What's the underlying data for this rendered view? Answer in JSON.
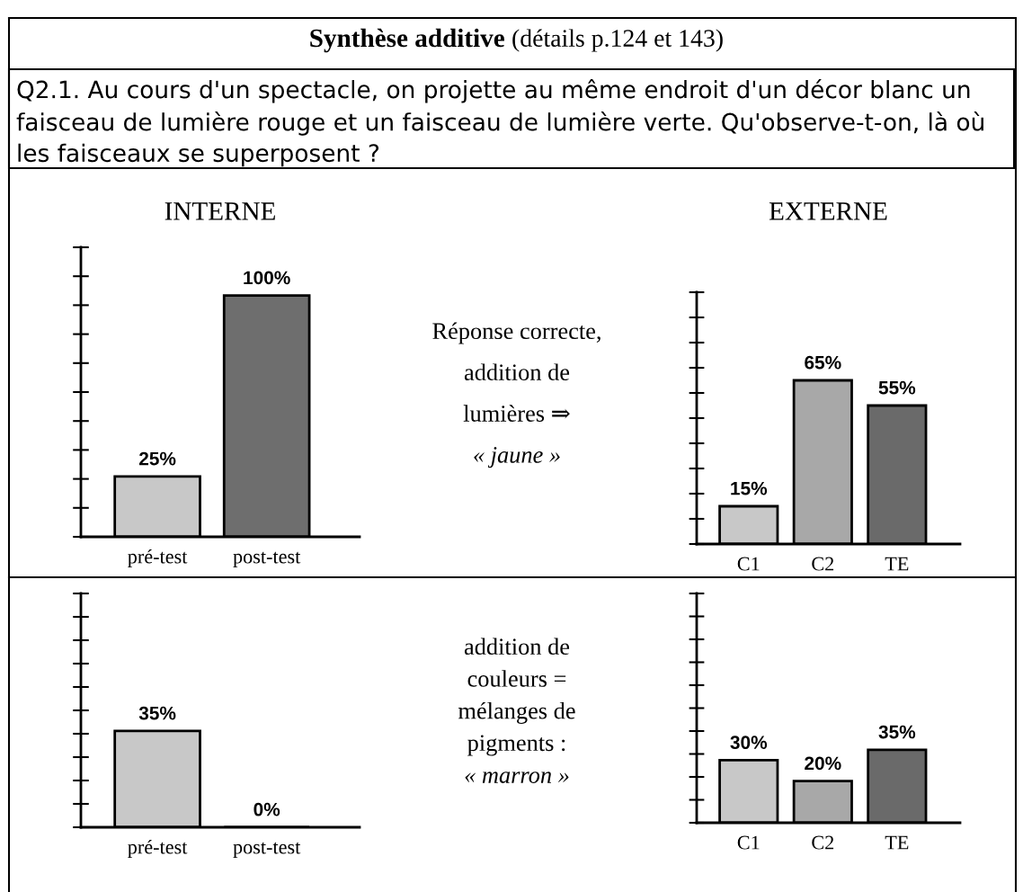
{
  "chart_data": [
    {
      "type": "other",
      "title": "Synthèse additive",
      "subtitle": "(détails p.124 et 143)",
      "annotations": [
        "Q2.1. Au cours d'un spectacle, on projette au même endroit d'un décor blanc un faisceau de lumière rouge et un faisceau de lumière verte. Qu'observe-t-on, là où les faisceaux se superposent ?"
      ]
    },
    {
      "type": "bar",
      "title": "INTERNE",
      "categories": [
        "pré-test",
        "post-test"
      ],
      "values": [
        25,
        100
      ],
      "colors": [
        "#c8c8c8",
        "#6e6e6e"
      ],
      "value_labels": [
        "25%",
        "100%"
      ],
      "ylim": [
        0,
        120
      ]
    },
    {
      "type": "other",
      "annotations": [
        "Réponse correcte,",
        "addition de",
        "lumières ⇒",
        "« jaune »"
      ]
    },
    {
      "type": "bar",
      "title": "EXTERNE",
      "categories": [
        "C1",
        "C2",
        "TE"
      ],
      "values": [
        15,
        65,
        55
      ],
      "colors": [
        "#c8c8c8",
        "#a8a8a8",
        "#6a6a6a"
      ],
      "value_labels": [
        "15%",
        "65%",
        "55%"
      ],
      "ylim": [
        0,
        100
      ]
    },
    {
      "type": "bar",
      "categories": [
        "pré-test",
        "post-test"
      ],
      "values": [
        35,
        0
      ],
      "colors": [
        "#c8c8c8",
        "#6e6e6e"
      ],
      "value_labels": [
        "35%",
        "0%"
      ],
      "ylim": [
        0,
        85
      ]
    },
    {
      "type": "other",
      "annotations": [
        "addition de",
        "couleurs =",
        "mélanges de",
        "pigments :",
        "« marron »"
      ]
    },
    {
      "type": "bar",
      "categories": [
        "C1",
        "C2",
        "TE"
      ],
      "values": [
        30,
        20,
        35
      ],
      "colors": [
        "#c8c8c8",
        "#a8a8a8",
        "#6a6a6a"
      ],
      "value_labels": [
        "30%",
        "20%",
        "35%"
      ],
      "ylim": [
        0,
        110
      ]
    }
  ]
}
